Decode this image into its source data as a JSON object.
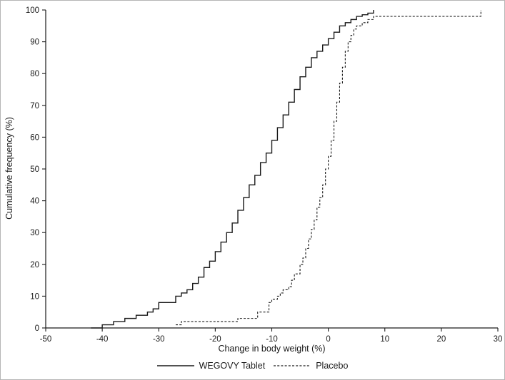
{
  "chart_data": {
    "type": "line",
    "subtype": "cumulative-frequency-step",
    "title": "",
    "xlabel": "Change in body weight (%)",
    "ylabel": "Cumulative frequency (%)",
    "xlim": [
      -50,
      30
    ],
    "ylim": [
      0,
      100
    ],
    "xticks": [
      -50,
      -40,
      -30,
      -20,
      -10,
      0,
      10,
      20,
      30
    ],
    "yticks": [
      0,
      10,
      20,
      30,
      40,
      50,
      60,
      70,
      80,
      90,
      100
    ],
    "grid": false,
    "legend_position": "bottom",
    "line_color": "#1a1a1a",
    "series": [
      {
        "name": "WEGOVY Tablet",
        "style": "solid",
        "points": [
          [
            -42,
            0
          ],
          [
            -41,
            0
          ],
          [
            -40,
            1
          ],
          [
            -39,
            1
          ],
          [
            -38,
            2
          ],
          [
            -37,
            2
          ],
          [
            -36,
            3
          ],
          [
            -35,
            3
          ],
          [
            -34,
            4
          ],
          [
            -33,
            4
          ],
          [
            -32,
            5
          ],
          [
            -31,
            6
          ],
          [
            -30,
            8
          ],
          [
            -28,
            8
          ],
          [
            -27,
            10
          ],
          [
            -26,
            11
          ],
          [
            -25,
            12
          ],
          [
            -24,
            14
          ],
          [
            -23,
            16
          ],
          [
            -22,
            19
          ],
          [
            -21,
            21
          ],
          [
            -20,
            24
          ],
          [
            -19,
            27
          ],
          [
            -18,
            30
          ],
          [
            -17,
            33
          ],
          [
            -16,
            37
          ],
          [
            -15,
            41
          ],
          [
            -14,
            45
          ],
          [
            -13,
            48
          ],
          [
            -12,
            52
          ],
          [
            -11,
            55
          ],
          [
            -10,
            59
          ],
          [
            -9,
            63
          ],
          [
            -8,
            67
          ],
          [
            -7,
            71
          ],
          [
            -6,
            75
          ],
          [
            -5,
            79
          ],
          [
            -4,
            82
          ],
          [
            -3,
            85
          ],
          [
            -2,
            87
          ],
          [
            -1,
            89
          ],
          [
            0,
            91
          ],
          [
            1,
            93
          ],
          [
            2,
            95
          ],
          [
            3,
            96
          ],
          [
            4,
            97
          ],
          [
            5,
            98
          ],
          [
            6,
            98.5
          ],
          [
            7,
            99
          ],
          [
            8,
            100
          ]
        ]
      },
      {
        "name": "Placebo",
        "style": "dashed",
        "points": [
          [
            -27,
            1
          ],
          [
            -26,
            2
          ],
          [
            -17,
            2
          ],
          [
            -16,
            3
          ],
          [
            -13,
            3
          ],
          [
            -12.5,
            5
          ],
          [
            -11,
            5
          ],
          [
            -10.5,
            8
          ],
          [
            -10,
            9
          ],
          [
            -9,
            10
          ],
          [
            -8.5,
            11
          ],
          [
            -8,
            12
          ],
          [
            -7,
            13
          ],
          [
            -6.5,
            15
          ],
          [
            -6,
            17
          ],
          [
            -5,
            20
          ],
          [
            -4.5,
            22
          ],
          [
            -4,
            25
          ],
          [
            -3.5,
            28
          ],
          [
            -3,
            31
          ],
          [
            -2.5,
            34
          ],
          [
            -2,
            38
          ],
          [
            -1.5,
            41
          ],
          [
            -1,
            45
          ],
          [
            -0.5,
            50
          ],
          [
            0,
            54
          ],
          [
            0.5,
            59
          ],
          [
            1,
            65
          ],
          [
            1.5,
            71
          ],
          [
            2,
            77
          ],
          [
            2.5,
            82
          ],
          [
            3,
            87
          ],
          [
            3.5,
            90
          ],
          [
            4,
            92
          ],
          [
            4.5,
            94
          ],
          [
            5,
            95
          ],
          [
            6,
            96
          ],
          [
            7,
            97
          ],
          [
            8,
            98
          ],
          [
            26,
            98
          ],
          [
            27,
            100
          ]
        ]
      }
    ]
  }
}
